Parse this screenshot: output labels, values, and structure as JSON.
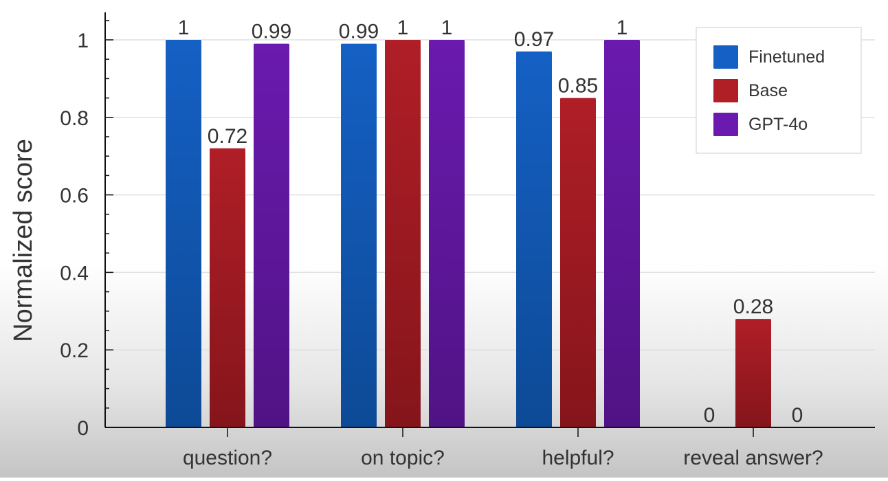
{
  "chart_data": {
    "type": "bar",
    "title": "",
    "xlabel": "",
    "ylabel": "Normalized score",
    "ylim": [
      0,
      1.07
    ],
    "yticks": [
      {
        "value": 0,
        "label": "0"
      },
      {
        "value": 0.2,
        "label": "0.2"
      },
      {
        "value": 0.4,
        "label": "0.4"
      },
      {
        "value": 0.6,
        "label": "0.6"
      },
      {
        "value": 0.8,
        "label": "0.8"
      },
      {
        "value": 1,
        "label": "1"
      }
    ],
    "categories": [
      "question?",
      "on topic?",
      "helpful?",
      "reveal answer?"
    ],
    "series": [
      {
        "name": "Finetuned",
        "values": [
          1,
          0.99,
          0.97,
          0
        ],
        "labels": [
          "1",
          "0.99",
          "0.97",
          "0"
        ],
        "color": "#1560c4",
        "color_dark": "#0d4a96"
      },
      {
        "name": "Base",
        "values": [
          0.72,
          1,
          0.85,
          0.28
        ],
        "labels": [
          "0.72",
          "1",
          "0.85",
          "0.28"
        ],
        "color": "#b01e26",
        "color_dark": "#85151b"
      },
      {
        "name": "GPT-4o",
        "values": [
          0.99,
          1,
          1,
          0
        ],
        "labels": [
          "0.99",
          "1",
          "1",
          "0"
        ],
        "color": "#6a1aae",
        "color_dark": "#501385"
      }
    ],
    "grid": true,
    "legend_position": "top-right"
  }
}
